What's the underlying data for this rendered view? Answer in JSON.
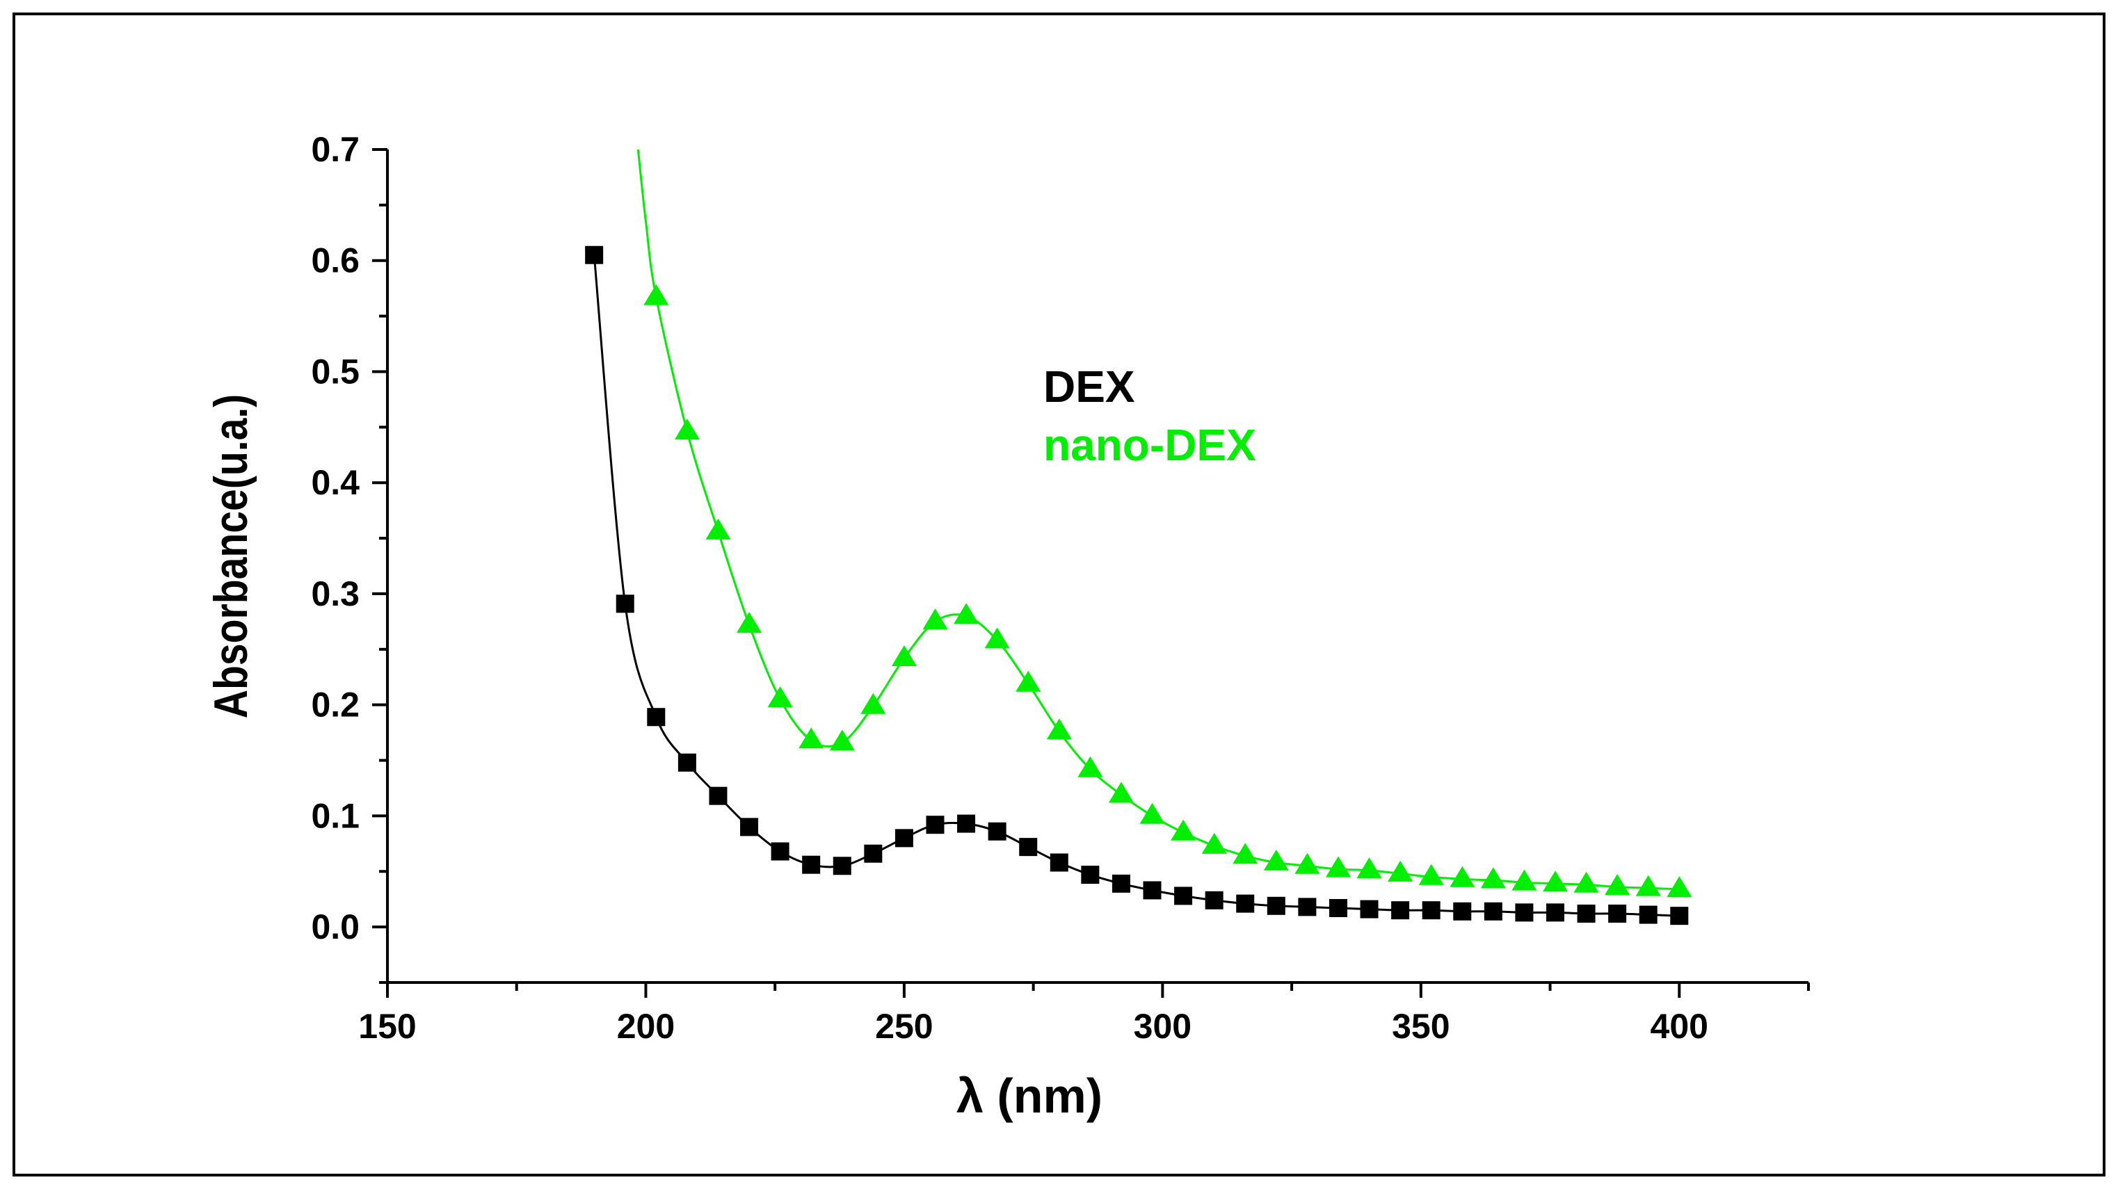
{
  "chart_data": {
    "type": "line",
    "title": "",
    "xlabel": "λ (nm)",
    "ylabel": "Absorbance(u.a.)",
    "xlim": [
      150,
      425
    ],
    "ylim": [
      -0.05,
      0.7
    ],
    "xticks": [
      150,
      200,
      250,
      300,
      350,
      400
    ],
    "yticks": [
      0.0,
      0.1,
      0.2,
      0.3,
      0.4,
      0.5,
      0.6,
      0.7
    ],
    "xtick_labels": [
      "150",
      "200",
      "250",
      "300",
      "350",
      "400"
    ],
    "ytick_labels": [
      "0.0",
      "0.1",
      "0.2",
      "0.3",
      "0.4",
      "0.5",
      "0.6",
      "0.7"
    ],
    "grid": false,
    "legend_position": "upper-middle",
    "series": [
      {
        "name": "DEX",
        "color": "#000000",
        "marker": "square",
        "x": [
          190,
          196,
          202,
          208,
          214,
          220,
          226,
          232,
          238,
          244,
          250,
          256,
          262,
          268,
          274,
          280,
          286,
          292,
          298,
          304,
          310,
          316,
          322,
          328,
          334,
          340,
          346,
          352,
          358,
          364,
          370,
          376,
          382,
          388,
          394,
          400
        ],
        "y": [
          0.605,
          0.291,
          0.189,
          0.148,
          0.118,
          0.09,
          0.068,
          0.056,
          0.055,
          0.066,
          0.08,
          0.092,
          0.093,
          0.086,
          0.072,
          0.058,
          0.047,
          0.039,
          0.033,
          0.028,
          0.024,
          0.021,
          0.019,
          0.018,
          0.017,
          0.016,
          0.015,
          0.015,
          0.014,
          0.014,
          0.013,
          0.013,
          0.012,
          0.012,
          0.011,
          0.01
        ]
      },
      {
        "name": "nano-DEX",
        "color": "#00ee00",
        "marker": "triangle",
        "x": [
          202,
          208,
          214,
          220,
          226,
          232,
          238,
          244,
          250,
          256,
          262,
          268,
          274,
          280,
          286,
          292,
          298,
          304,
          310,
          316,
          322,
          328,
          334,
          340,
          346,
          352,
          358,
          364,
          370,
          376,
          382,
          388,
          394,
          400
        ],
        "y": [
          0.567,
          0.446,
          0.356,
          0.272,
          0.205,
          0.168,
          0.166,
          0.199,
          0.242,
          0.275,
          0.28,
          0.258,
          0.219,
          0.176,
          0.142,
          0.119,
          0.1,
          0.085,
          0.073,
          0.064,
          0.058,
          0.055,
          0.052,
          0.051,
          0.048,
          0.045,
          0.043,
          0.042,
          0.04,
          0.039,
          0.038,
          0.036,
          0.035,
          0.034
        ]
      }
    ],
    "nano_dex_upper_curve": {
      "x": [
        198.5,
        200,
        202
      ],
      "y": [
        0.7,
        0.635,
        0.567
      ]
    }
  }
}
